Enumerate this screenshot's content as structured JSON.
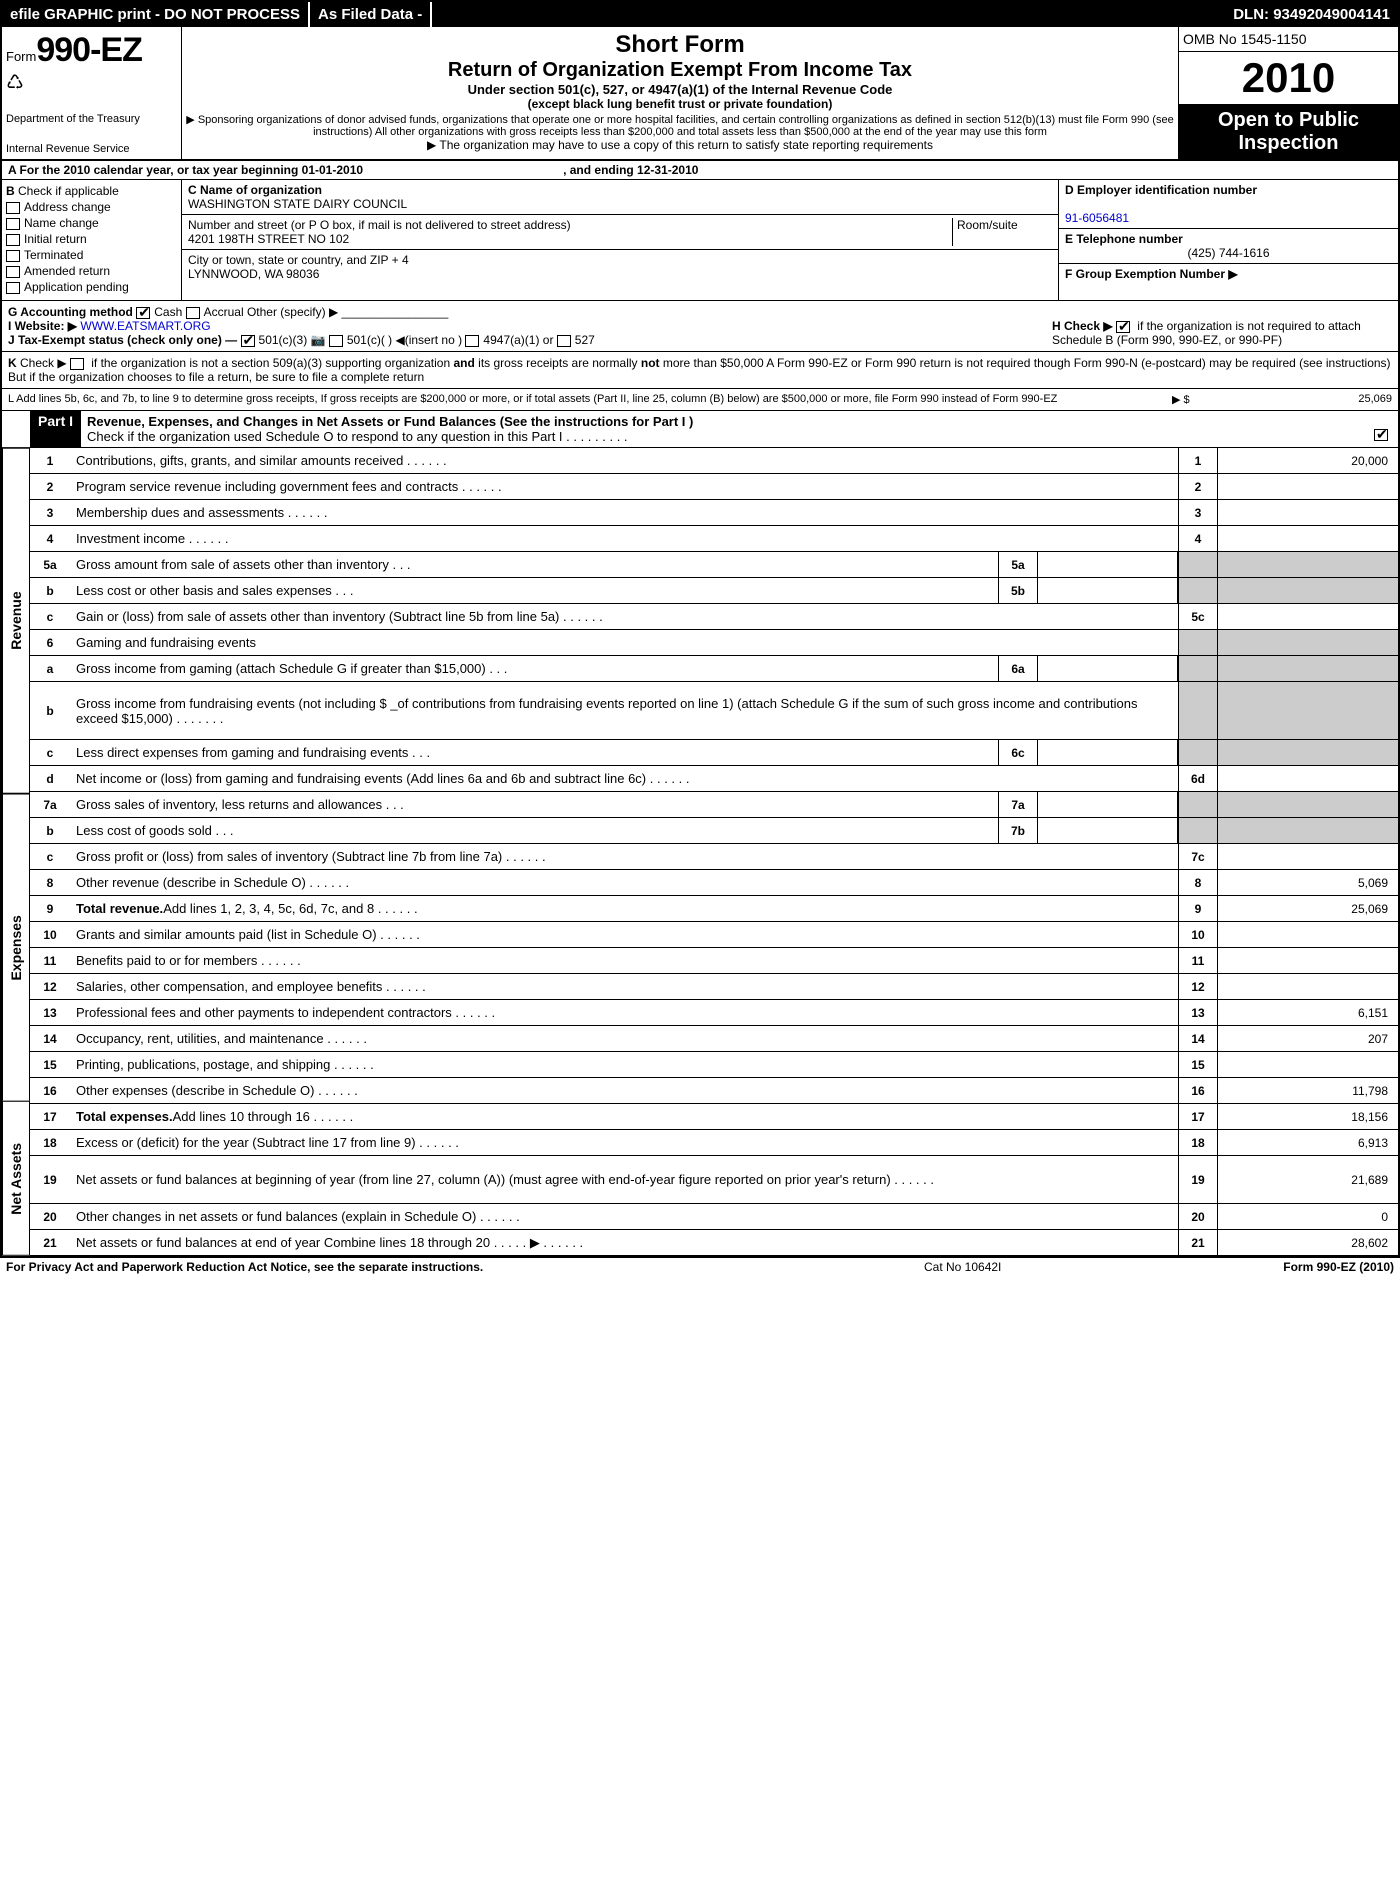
{
  "topbar": {
    "left": "efile GRAPHIC print - DO NOT PROCESS",
    "mid": "As Filed Data -",
    "right": "DLN: 93492049004141"
  },
  "header": {
    "form_prefix": "Form",
    "form_number": "990-EZ",
    "dept1": "Department of the Treasury",
    "dept2": "Internal Revenue Service",
    "title": "Short Form",
    "subtitle": "Return of Organization Exempt From Income Tax",
    "under": "Under section 501(c), 527, or 4947(a)(1) of the Internal Revenue Code",
    "except": "(except black lung benefit trust or private foundation)",
    "note1": "▶ Sponsoring organizations of donor advised funds, organizations that operate one or more hospital facilities, and certain controlling organizations as defined in section 512(b)(13) must file Form 990 (see instructions) All other organizations with gross receipts less than $200,000 and total assets less than $500,000 at the end of the year may use this form",
    "note2": "▶ The organization may have to use a copy of this return to satisfy state reporting requirements",
    "omb": "OMB No 1545-1150",
    "year": "2010",
    "open": "Open to Public Inspection"
  },
  "lineA": {
    "left": "A  For the 2010 calendar year, or tax year beginning 01-01-2010",
    "right": ", and ending 12-31-2010"
  },
  "boxB": {
    "title": "B",
    "check_label": "Check if applicable",
    "items": [
      "Address change",
      "Name change",
      "Initial return",
      "Terminated",
      "Amended return",
      "Application pending"
    ]
  },
  "boxC": {
    "name_label": "C Name of organization",
    "name": "WASHINGTON STATE DAIRY COUNCIL",
    "street_label": "Number and street (or P O box, if mail is not delivered to street address)",
    "room_label": "Room/suite",
    "street": "4201 198TH STREET NO 102",
    "city_label": "City or town, state or country, and ZIP + 4",
    "city": "LYNNWOOD, WA  98036"
  },
  "boxD": {
    "ein_label": "D Employer identification number",
    "ein": "91-6056481",
    "tel_label": "E Telephone number",
    "tel": "(425) 744-1616",
    "group_label": "F Group Exemption Number ▶"
  },
  "sectionG": {
    "g": "G Accounting method",
    "cash": "Cash",
    "accrual": "Accrual",
    "other": "Other (specify) ▶",
    "website_label": "I Website: ▶",
    "website": "WWW.EATSMART.ORG",
    "j": "J Tax-Exempt status (check only one) —",
    "j1": "501(c)(3)",
    "j2": "501(c)(  ) ◀(insert no )",
    "j3": "4947(a)(1) or",
    "j4": "527",
    "h": "H  Check ▶",
    "h_text": "if the organization is not required to attach Schedule B (Form 990, 990-EZ, or 990-PF)"
  },
  "sectionK": "K Check ▶       if the organization is not a section 509(a)(3) supporting organization and its gross receipts are normally not more than $50,000  A Form 990-EZ or Form 990 return is not required though Form 990-N (e-postcard) may be required (see instructions)  But if the organization chooses to file a return, be sure to file a complete return",
  "sectionL": {
    "text": "L Add lines 5b, 6c, and 7b, to line 9 to determine gross receipts, If gross receipts are $200,000 or more, or if total assets (Part II, line 25, column (B) below) are $500,000 or more, file Form 990 instead of Form 990-EZ",
    "arrow": "▶ $",
    "val": "25,069"
  },
  "partI": {
    "label": "Part I",
    "title": "Revenue, Expenses, and Changes in Net Assets or Fund Balances (See the instructions for Part I )",
    "check": "Check if the organization used Schedule O to respond to any question in this Part I   .    .    .    .    .    .    .    .    ."
  },
  "sideLabels": {
    "rev": "Revenue",
    "exp": "Expenses",
    "net": "Net Assets"
  },
  "lines": {
    "l1": {
      "n": "1",
      "t": "Contributions, gifts, grants, and similar amounts received",
      "rn": "1",
      "rv": "20,000"
    },
    "l2": {
      "n": "2",
      "t": "Program service revenue including government fees and contracts",
      "rn": "2",
      "rv": ""
    },
    "l3": {
      "n": "3",
      "t": "Membership dues and assessments",
      "rn": "3",
      "rv": ""
    },
    "l4": {
      "n": "4",
      "t": "Investment income",
      "rn": "4",
      "rv": ""
    },
    "l5a": {
      "n": "5a",
      "t": "Gross amount from sale of assets other than inventory",
      "sn": "5a"
    },
    "l5b": {
      "n": "b",
      "t": "Less  cost or other basis and sales expenses",
      "sn": "5b"
    },
    "l5c": {
      "n": "c",
      "t": "Gain or (loss) from sale of assets other than inventory (Subtract line 5b from line 5a)",
      "rn": "5c",
      "rv": ""
    },
    "l6": {
      "n": "6",
      "t": "Gaming and fundraising events"
    },
    "l6a": {
      "n": "a",
      "t": "Gross income from gaming (attach Schedule G if greater than $15,000)",
      "sn": "6a"
    },
    "l6b": {
      "n": "b",
      "t": "Gross income from fundraising events (not including $ _of contributions from fundraising events reported on line 1) (attach Schedule G if the sum of such gross income and contributions exceed $15,000)    .    .    .    .    .    .    ."
    },
    "l6c": {
      "n": "c",
      "t": "Less  direct expenses from gaming and fundraising events",
      "sn": "6c"
    },
    "l6d": {
      "n": "d",
      "t": "Net income or (loss) from gaming and fundraising events (Add lines 6a and 6b and subtract line 6c)",
      "rn": "6d",
      "rv": ""
    },
    "l7a": {
      "n": "7a",
      "t": "Gross sales of inventory, less returns and allowances",
      "sn": "7a"
    },
    "l7b": {
      "n": "b",
      "t": "Less  cost of goods sold",
      "sn": "7b"
    },
    "l7c": {
      "n": "c",
      "t": "Gross profit or (loss) from sales of inventory (Subtract line 7b from line 7a)",
      "rn": "7c",
      "rv": ""
    },
    "l8": {
      "n": "8",
      "t": "Other revenue (describe in Schedule O)",
      "rn": "8",
      "rv": "5,069"
    },
    "l9": {
      "n": "9",
      "t": "Total revenue. Add lines 1, 2, 3, 4, 5c, 6d, 7c, and 8",
      "rn": "9",
      "rv": "25,069"
    },
    "l10": {
      "n": "10",
      "t": "Grants and similar amounts paid (list in Schedule O)",
      "rn": "10",
      "rv": ""
    },
    "l11": {
      "n": "11",
      "t": "Benefits paid to or for members",
      "rn": "11",
      "rv": ""
    },
    "l12": {
      "n": "12",
      "t": "Salaries, other compensation, and employee benefits",
      "rn": "12",
      "rv": ""
    },
    "l13": {
      "n": "13",
      "t": "Professional fees and other payments to independent contractors",
      "rn": "13",
      "rv": "6,151"
    },
    "l14": {
      "n": "14",
      "t": "Occupancy, rent, utilities, and maintenance",
      "rn": "14",
      "rv": "207"
    },
    "l15": {
      "n": "15",
      "t": "Printing, publications, postage, and shipping",
      "rn": "15",
      "rv": ""
    },
    "l16": {
      "n": "16",
      "t": "Other expenses (describe in Schedule O)",
      "rn": "16",
      "rv": "11,798"
    },
    "l17": {
      "n": "17",
      "t": "Total expenses. Add lines 10 through 16",
      "rn": "17",
      "rv": "18,156"
    },
    "l18": {
      "n": "18",
      "t": "Excess or (deficit) for the year (Subtract line 17 from line 9)",
      "rn": "18",
      "rv": "6,913"
    },
    "l19": {
      "n": "19",
      "t": "Net assets or fund balances at beginning of year (from line 27, column (A)) (must agree with end-of-year figure reported on prior year's return)",
      "rn": "19",
      "rv": "21,689"
    },
    "l20": {
      "n": "20",
      "t": "Other changes in net assets or fund balances (explain in Schedule O)",
      "rn": "20",
      "rv": "0"
    },
    "l21": {
      "n": "21",
      "t": "Net assets or fund balances at end of year  Combine lines 18 through 20    .    .    .    .    . ▶",
      "rn": "21",
      "rv": "28,602"
    }
  },
  "footer": {
    "f1": "For Privacy Act and Paperwork Reduction Act Notice, see the separate instructions.",
    "f2": "Cat No 10642I",
    "f3": "Form 990-EZ (2010)"
  },
  "colors": {
    "black": "#000000",
    "white": "#ffffff",
    "grey": "#cccccc",
    "link": "#0000cc"
  }
}
